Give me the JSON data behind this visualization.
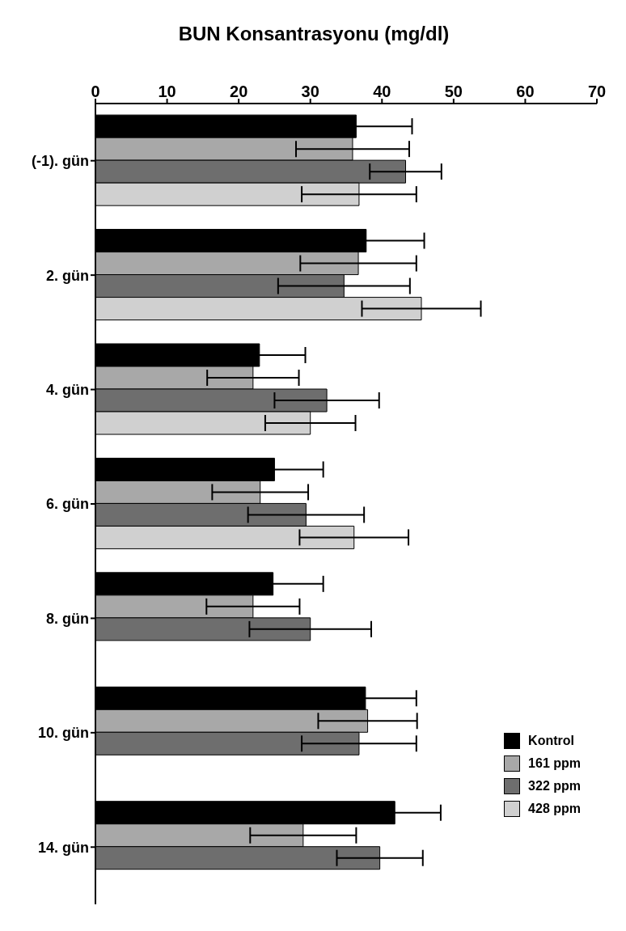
{
  "chart_data": {
    "type": "bar",
    "orientation": "horizontal",
    "xlabel": "BUN  Konsantrasyonu (mg/dl)",
    "categories": [
      "(-1). gün",
      "2. gün",
      "4. gün",
      "6. gün",
      "8. gün",
      "10. gün",
      "14. gün"
    ],
    "xlim": [
      0,
      70
    ],
    "xticks": [
      0,
      10,
      20,
      30,
      40,
      50,
      60,
      70
    ],
    "legend": "bottom right",
    "series": [
      {
        "name": "Kontrol",
        "color": "#000000",
        "values": [
          36.4,
          37.8,
          22.9,
          25.0,
          24.8,
          37.7,
          41.8
        ],
        "errors": [
          7.8,
          8.1,
          6.4,
          6.8,
          7.0,
          7.1,
          6.4
        ]
      },
      {
        "name": "161 ppm",
        "color": "#a8a8a8",
        "values": [
          35.9,
          36.7,
          22.0,
          23.0,
          22.0,
          38.0,
          29.0
        ],
        "errors": [
          7.9,
          8.1,
          6.4,
          6.7,
          6.5,
          6.9,
          7.4
        ]
      },
      {
        "name": "322 ppm",
        "color": "#6e6e6e",
        "values": [
          43.3,
          34.7,
          32.3,
          29.4,
          30.0,
          36.8,
          39.7
        ],
        "errors": [
          5.0,
          9.2,
          7.3,
          8.1,
          8.5,
          8.0,
          6.0
        ]
      },
      {
        "name": "428 ppm",
        "color": "#d0d0d0",
        "values": [
          36.8,
          45.5,
          30.0,
          36.1,
          null,
          null,
          null
        ],
        "errors": [
          8.0,
          8.3,
          6.3,
          7.6,
          null,
          null,
          null
        ]
      }
    ]
  }
}
